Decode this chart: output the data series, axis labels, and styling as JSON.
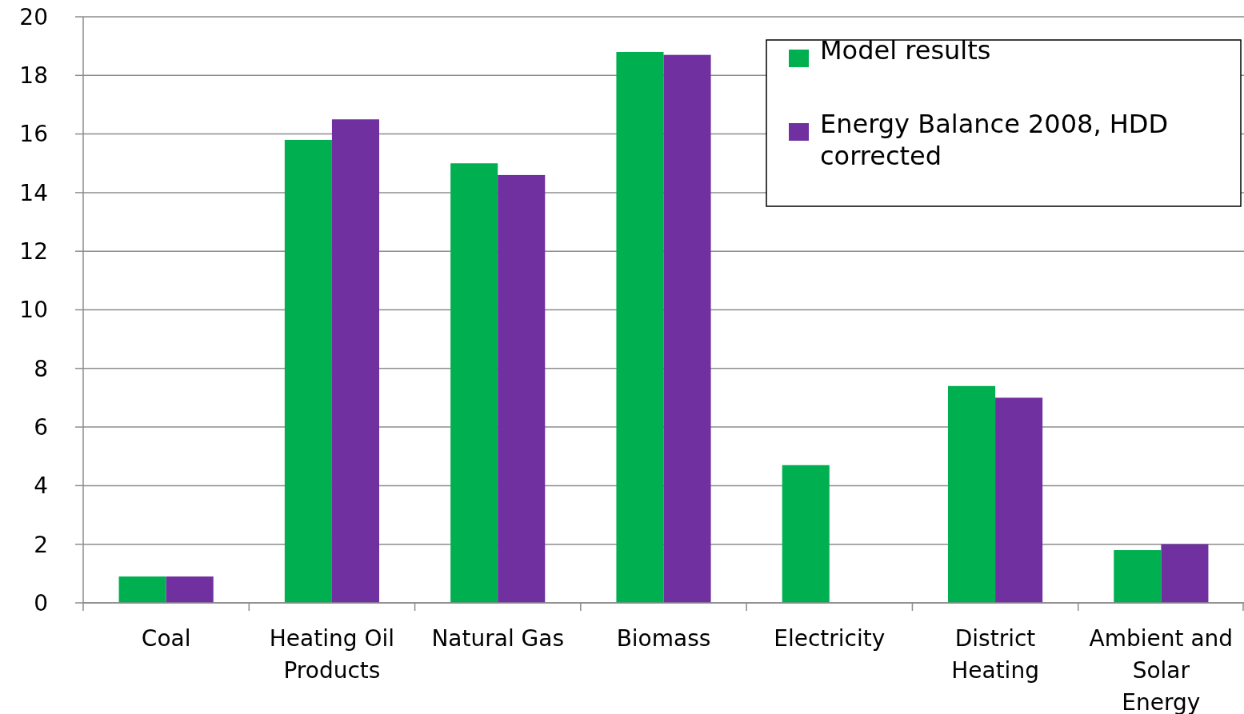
{
  "chart_data": {
    "type": "bar",
    "categories": [
      "Coal",
      "Heating Oil Products",
      "Natural Gas",
      "Biomass",
      "Electricity",
      "District Heating",
      "Ambient and Solar Energy"
    ],
    "series": [
      {
        "name": "Model results",
        "color": "#00b050",
        "values": [
          0.9,
          15.8,
          15.0,
          18.8,
          4.7,
          7.4,
          1.8
        ]
      },
      {
        "name": "Energy Balance 2008, HDD corrected",
        "color": "#7030a0",
        "values": [
          0.9,
          16.5,
          14.6,
          18.7,
          null,
          7.0,
          2.0
        ]
      }
    ],
    "ylim": [
      0,
      20
    ],
    "yticks": [
      0,
      2,
      4,
      6,
      8,
      10,
      12,
      14,
      16,
      18,
      20
    ],
    "grid": "y",
    "legend": "top right"
  }
}
